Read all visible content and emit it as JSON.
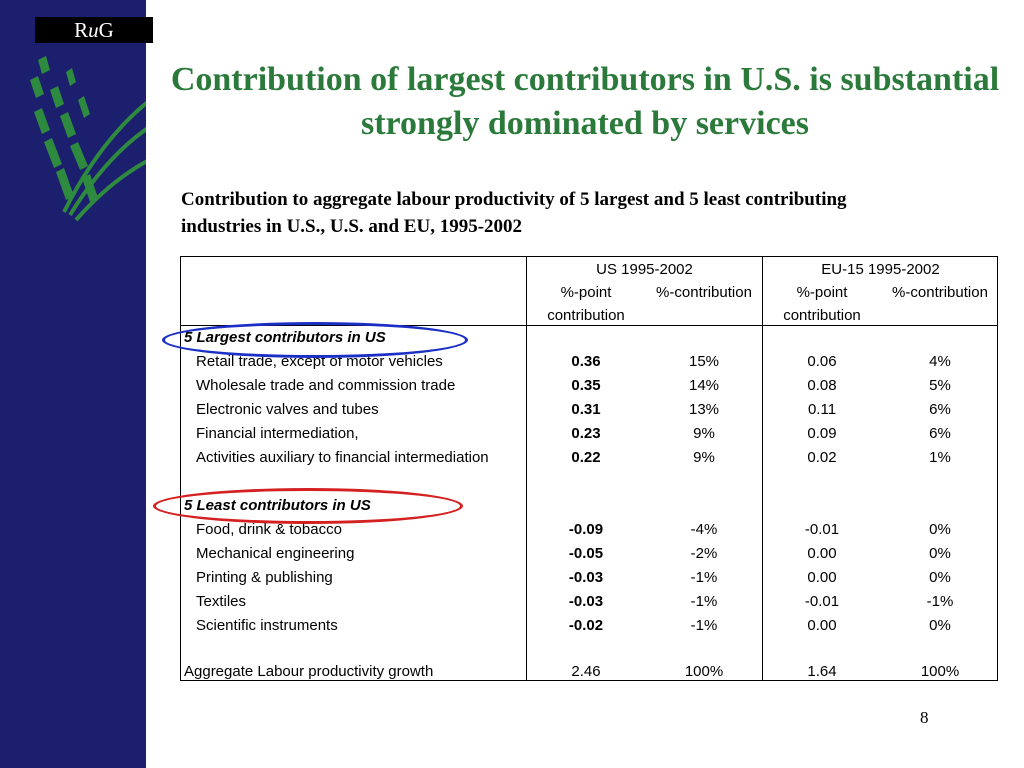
{
  "logo": {
    "text_r": "R",
    "text_u": "u",
    "text_g": "G"
  },
  "title": "Contribution of largest contributors in U.S. is substantial strongly dominated by services",
  "subtitle": "Contribution to aggregate labour productivity of 5 largest and 5 least contributing industries in U.S., U.S. and EU,  1995-2002",
  "table": {
    "header": {
      "us_group": "US 1995-2002",
      "eu_group": "EU-15 1995-2002",
      "pct_point": "%-point",
      "contribution": "contribution",
      "pct_contribution": "%-contribution"
    },
    "largest_heading": "5 Largest contributors in US",
    "largest": [
      {
        "industry": "Retail trade, except of motor vehicles",
        "us_pp": "0.36",
        "us_pct": "15%",
        "eu_pp": "0.06",
        "eu_pct": "4%"
      },
      {
        "industry": "Wholesale trade and commission trade",
        "us_pp": "0.35",
        "us_pct": "14%",
        "eu_pp": "0.08",
        "eu_pct": "5%"
      },
      {
        "industry": "Electronic valves and tubes",
        "us_pp": "0.31",
        "us_pct": "13%",
        "eu_pp": "0.11",
        "eu_pct": "6%"
      },
      {
        "industry": "Financial intermediation,",
        "us_pp": "0.23",
        "us_pct": "9%",
        "eu_pp": "0.09",
        "eu_pct": "6%"
      },
      {
        "industry": "Activities auxiliary to financial intermediation",
        "us_pp": "0.22",
        "us_pct": "9%",
        "eu_pp": "0.02",
        "eu_pct": "1%"
      }
    ],
    "least_heading": "5 Least contributors in US",
    "least": [
      {
        "industry": "Food, drink & tobacco",
        "us_pp": "-0.09",
        "us_pct": "-4%",
        "eu_pp": "-0.01",
        "eu_pct": "0%"
      },
      {
        "industry": "Mechanical engineering",
        "us_pp": "-0.05",
        "us_pct": "-2%",
        "eu_pp": "0.00",
        "eu_pct": "0%"
      },
      {
        "industry": "Printing & publishing",
        "us_pp": "-0.03",
        "us_pct": "-1%",
        "eu_pp": "0.00",
        "eu_pct": "0%"
      },
      {
        "industry": "Textiles",
        "us_pp": "-0.03",
        "us_pct": "-1%",
        "eu_pp": "-0.01",
        "eu_pct": "-1%"
      },
      {
        "industry": "Scientific instruments",
        "us_pp": "-0.02",
        "us_pct": "-1%",
        "eu_pp": "0.00",
        "eu_pct": "0%"
      }
    ],
    "aggregate": {
      "industry": "Aggregate Labour productivity growth",
      "us_pp": "2.46",
      "us_pct": "100%",
      "eu_pp": "1.64",
      "eu_pct": "100%"
    }
  },
  "page_number": "8",
  "colors": {
    "sidebar": "#1c1e6e",
    "title": "#2b7a3b",
    "leaf": "#2e8a3e",
    "blue_ellipse": "#1b2fc4",
    "red_ellipse": "#d42020"
  },
  "icons": {
    "logo_leaf": "wheat-leaf-icon"
  }
}
